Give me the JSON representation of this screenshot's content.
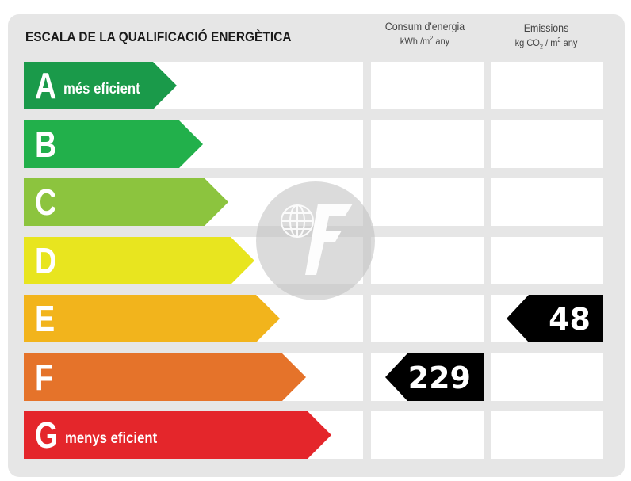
{
  "header": {
    "title": "ESCALA DE LA QUALIFICACIÓ ENERGÈTICA",
    "consum_title": "Consum d'energia",
    "consum_unit_a": "kWh /m",
    "consum_unit_sup": "2",
    "consum_unit_b": " any",
    "emis_title": "Emissions",
    "emis_unit_a": "kg CO",
    "emis_unit_sub": "2",
    "emis_unit_b": "/ m",
    "emis_unit_sup": "2",
    "emis_unit_c": " any"
  },
  "ratings": [
    {
      "letter": "A",
      "label": "més eficient",
      "color": "#1a9a4a"
    },
    {
      "letter": "B",
      "label": "",
      "color": "#22b04b"
    },
    {
      "letter": "C",
      "label": "",
      "color": "#8cc43e"
    },
    {
      "letter": "D",
      "label": "",
      "color": "#e8e51f"
    },
    {
      "letter": "E",
      "label": "",
      "color": "#f2b41c"
    },
    {
      "letter": "F",
      "label": "",
      "color": "#e5732a"
    },
    {
      "letter": "G",
      "label": "menys eficient",
      "color": "#e4262b"
    }
  ],
  "consum": {
    "value": "229",
    "rating": "F"
  },
  "emissions": {
    "value": "48",
    "rating": "E"
  },
  "indicator_color": "#000000",
  "watermark_icon": "globe-logo-icon"
}
